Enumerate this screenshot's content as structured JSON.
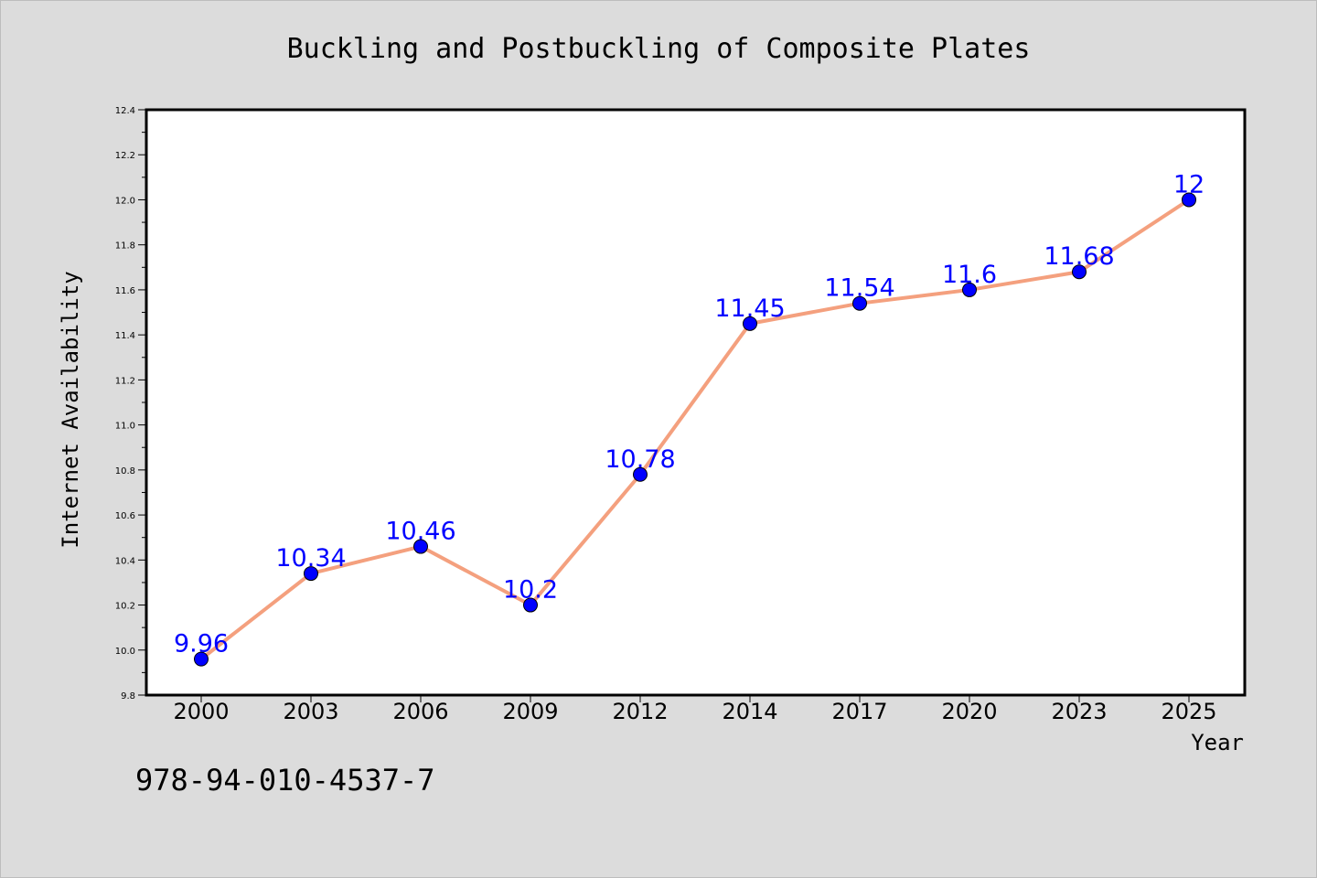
{
  "chart_data": {
    "type": "line",
    "title": "Buckling and Postbuckling of Composite Plates",
    "xlabel": "Year",
    "ylabel": "Internet Availability",
    "categories": [
      "2000",
      "2003",
      "2006",
      "2009",
      "2012",
      "2014",
      "2017",
      "2020",
      "2023",
      "2025"
    ],
    "series": [
      {
        "values": [
          9.96,
          10.34,
          10.46,
          10.2,
          10.78,
          11.45,
          11.54,
          11.6,
          11.68,
          12
        ],
        "data_labels": [
          "9.96",
          "10.34",
          "10.46",
          "10.2",
          "10.78",
          "11.45",
          "11.54",
          "11.6",
          "11.68",
          "12"
        ],
        "line_color": "#f4a07e",
        "marker_color": "#0000ff"
      }
    ],
    "ylim": [
      9.8,
      12.4
    ],
    "yticks": [
      "9.8",
      "10.0",
      "10.2",
      "10.4",
      "10.6",
      "10.8",
      "11.0",
      "11.2",
      "11.4",
      "11.6",
      "11.8",
      "12.0",
      "12.2",
      "12.4"
    ],
    "grid": false,
    "legend": "none",
    "background_color": "#dcdcdc",
    "plot_background_color": "#ffffff"
  },
  "footer": {
    "isbn": "978-94-010-4537-7"
  }
}
